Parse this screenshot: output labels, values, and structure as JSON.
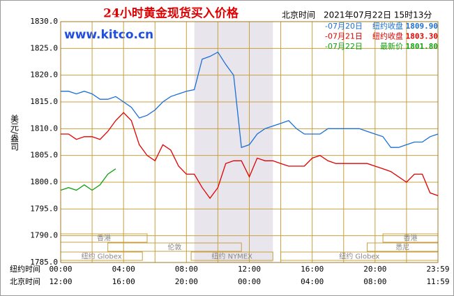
{
  "chart_data": {
    "type": "line",
    "title": "24小时黄金现货买入价格",
    "subtitle": "北京时间　2021年07月22日 15时13分",
    "watermark": "www.kitco.cn",
    "ylabel": "美元/盎司",
    "x_row_labels": [
      "纽约时间",
      "北京时间"
    ],
    "xlim": [
      0,
      24
    ],
    "ylim": [
      1785,
      1830
    ],
    "yticks": [
      {
        "value": 1830,
        "label": "1830.0"
      },
      {
        "value": 1825,
        "label": "1825.0"
      },
      {
        "value": 1820,
        "label": "1820.0"
      },
      {
        "value": 1815,
        "label": "1815.0"
      },
      {
        "value": 1810,
        "label": "1810.0"
      },
      {
        "value": 1805,
        "label": "1805.0"
      },
      {
        "value": 1800,
        "label": "1800.0"
      },
      {
        "value": 1795,
        "label": "1795.0"
      },
      {
        "value": 1790,
        "label": "1790.0"
      },
      {
        "value": 1785,
        "label": "1785.0"
      }
    ],
    "xticks": [
      {
        "value": 0,
        "label": "00:00"
      },
      {
        "value": 4,
        "label": "04:00"
      },
      {
        "value": 8,
        "label": "08:00"
      },
      {
        "value": 12,
        "label": "12:00"
      },
      {
        "value": 16,
        "label": "16:00"
      },
      {
        "value": 20,
        "label": "20:00"
      },
      {
        "value": 24,
        "label": "23:59"
      }
    ],
    "xticks_beijing": [
      {
        "value": 0,
        "label": "12:00"
      },
      {
        "value": 4,
        "label": "16:00"
      },
      {
        "value": 8,
        "label": "20:00"
      },
      {
        "value": 12,
        "label": "00:00"
      },
      {
        "value": 16,
        "label": "04:00"
      },
      {
        "value": 20,
        "label": "08:00"
      },
      {
        "value": 24,
        "label": "11:59"
      }
    ],
    "xgrid": [
      2,
      6,
      10,
      14,
      18,
      22
    ],
    "grid": true,
    "shade": [
      8.5,
      13.5
    ],
    "sessions": [
      [
        {
          "label": "香港",
          "start": 0,
          "end": 5.5
        },
        {
          "label": "香港",
          "start": 20.5,
          "end": 24
        }
      ],
      [
        {
          "label": "伦敦",
          "start": 3,
          "end": 11.5
        },
        {
          "label": "悉尼",
          "start": 19.5,
          "end": 24
        }
      ],
      [
        {
          "label": "纽约 Globex",
          "start": 0,
          "end": 5.2
        },
        {
          "label": "纽约 NYMEX",
          "start": 8.3,
          "end": 13.5
        },
        {
          "label": "纽约 Globex",
          "start": 14,
          "end": 24
        }
      ]
    ],
    "x": [
      0,
      0.5,
      1,
      1.5,
      2,
      2.5,
      3,
      3.5,
      4,
      4.5,
      5,
      5.5,
      6,
      6.5,
      7,
      7.5,
      8,
      8.5,
      9,
      9.5,
      10,
      10.5,
      11,
      11.5,
      12,
      12.5,
      13,
      13.5,
      14,
      14.5,
      15,
      15.5,
      16,
      16.5,
      17,
      17.5,
      18,
      18.5,
      19,
      19.5,
      20,
      20.5,
      21,
      21.5,
      22,
      22.5,
      23,
      23.5,
      24
    ],
    "series": [
      {
        "name": "-07月20日",
        "desc": "纽约收盘",
        "last": "1809.90",
        "color": "#1a6fd8",
        "values": [
          1817,
          1817,
          1816.5,
          1817,
          1816.5,
          1815.5,
          1815.5,
          1816,
          1815,
          1814,
          1812,
          1812.5,
          1813.5,
          1815,
          1816,
          1816.5,
          1817,
          1817.3,
          1823,
          1823.5,
          1824.3,
          1822,
          1820,
          1806.5,
          1807,
          1809,
          1810,
          1810.5,
          1811,
          1811.5,
          1810,
          1809,
          1809,
          1809,
          1810,
          1810,
          1810,
          1810,
          1810,
          1809.5,
          1809,
          1808.5,
          1806.5,
          1806.5,
          1807,
          1807.5,
          1807.5,
          1808.5,
          1809
        ]
      },
      {
        "name": "-07月21日",
        "desc": "纽约收盘",
        "last": "1803.30",
        "color": "#e00000",
        "values": [
          1809,
          1809,
          1808,
          1808.5,
          1808.5,
          1808,
          1809.5,
          1811.5,
          1813,
          1811.5,
          1807,
          1805,
          1804,
          1807,
          1806,
          1803,
          1801.5,
          1801.5,
          1799,
          1797,
          1799,
          1803.5,
          1804,
          1804,
          1801,
          1804.5,
          1804,
          1804,
          1803.5,
          1803,
          1803,
          1803,
          1804.5,
          1805,
          1804,
          1803.5,
          1803.5,
          1803.5,
          1803.5,
          1803.5,
          1803,
          1802.5,
          1802,
          1801,
          1800,
          1801.5,
          1801.5,
          1798,
          1797.5
        ]
      },
      {
        "name": "-07月22日",
        "desc": "最新价",
        "last": "1801.80",
        "color": "#10a010",
        "values": [
          1798.5,
          1799,
          1798.5,
          1799.5,
          1798.5,
          1799.5,
          1801.5,
          1802.5,
          null,
          null,
          null,
          null,
          null,
          null,
          null,
          null,
          null,
          null,
          null,
          null,
          null,
          null,
          null,
          null,
          null,
          null,
          null,
          null,
          null,
          null,
          null,
          null,
          null,
          null,
          null,
          null,
          null,
          null,
          null,
          null,
          null,
          null,
          null,
          null,
          null,
          null,
          null,
          null,
          null
        ]
      }
    ]
  }
}
